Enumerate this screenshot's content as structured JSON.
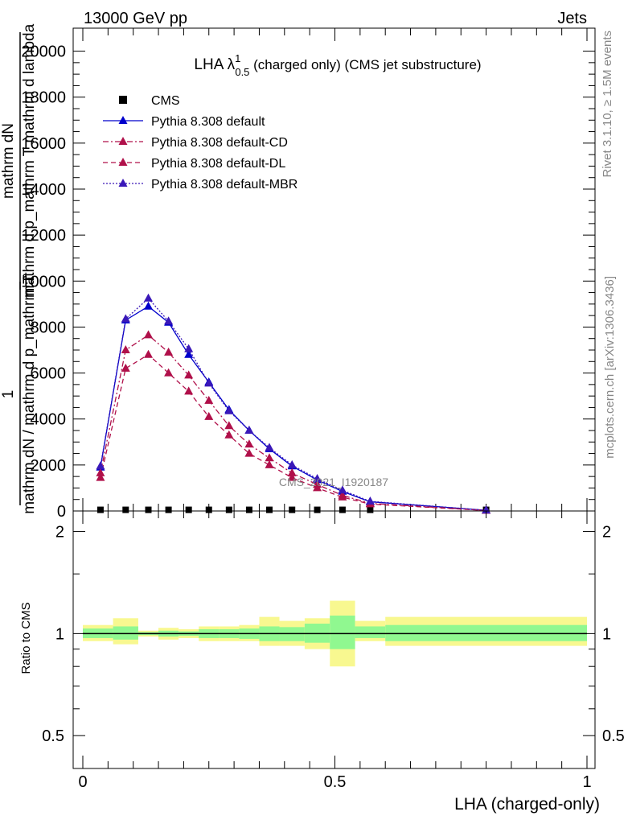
{
  "header": {
    "left": "13000 GeV pp",
    "right": "Jets"
  },
  "side_text": {
    "rivet": "Rivet 3.1.10, ≥ 1.5M events",
    "mcplots": "mcplots.cern.ch [arXiv:1306.3436]"
  },
  "chart_data": [
    {
      "type": "line",
      "title_main": "LHA λ",
      "title_sup": "1",
      "title_sub": "0.5",
      "title_rest": " (charged only) (CMS jet substructure)",
      "watermark": "CMS_2021_I1920187",
      "ylabel_line1": "mathrm dN",
      "ylabel_line2": "mathrm d p_mathrm T mathrm d lambda",
      "ylabel_line3": "1",
      "ylabel_line4": "mathrm dN / mathrm d p_mathrm T",
      "xlim": [
        0,
        1
      ],
      "ylim": [
        0,
        21000
      ],
      "y_ticks": [
        0,
        2000,
        4000,
        6000,
        8000,
        10000,
        12000,
        14000,
        16000,
        18000,
        20000
      ],
      "y_tick_labels": [
        "0",
        "2000",
        "4000",
        "6000",
        "8000",
        "10000",
        "12000",
        "14000",
        "16000",
        "18000",
        "20000"
      ],
      "x": [
        0.035,
        0.085,
        0.13,
        0.17,
        0.21,
        0.25,
        0.29,
        0.33,
        0.37,
        0.415,
        0.465,
        0.515,
        0.57,
        0.8
      ],
      "series": [
        {
          "name": "CMS",
          "color": "#000000",
          "marker": "square",
          "values": [
            50,
            50,
            50,
            50,
            50,
            50,
            50,
            50,
            50,
            50,
            50,
            50,
            50,
            50
          ]
        },
        {
          "name": "Pythia 8.308 default",
          "color": "#0000cc",
          "marker": "triangle",
          "dash": "solid",
          "values": [
            1900,
            8300,
            8900,
            8200,
            6800,
            5600,
            4400,
            3500,
            2700,
            1950,
            1350,
            850,
            400,
            30
          ]
        },
        {
          "name": "Pythia 8.308 default-CD",
          "color": "#b0104a",
          "marker": "triangle",
          "dash": "dashdot",
          "values": [
            1650,
            7000,
            7650,
            6900,
            5900,
            4800,
            3700,
            2900,
            2300,
            1650,
            1150,
            680,
            330,
            25
          ]
        },
        {
          "name": "Pythia 8.308 default-DL",
          "color": "#b0104a",
          "marker": "triangle",
          "dash": "dashed",
          "values": [
            1450,
            6200,
            6800,
            6000,
            5200,
            4100,
            3300,
            2500,
            2000,
            1450,
            1000,
            600,
            300,
            20
          ]
        },
        {
          "name": "Pythia 8.308 default-MBR",
          "color": "#3a18b8",
          "marker": "triangle",
          "dash": "dotted",
          "values": [
            1950,
            8350,
            9250,
            8250,
            7050,
            5550,
            4350,
            3500,
            2750,
            2000,
            1400,
            900,
            420,
            30
          ]
        }
      ]
    },
    {
      "type": "area",
      "ylabel": "Ratio to CMS",
      "xlabel": "LHA (charged-only)",
      "xlim": [
        0,
        1
      ],
      "ylim": [
        0.4,
        2.3
      ],
      "y_ticks": [
        0.5,
        1,
        2
      ],
      "y_tick_labels": [
        "0.5",
        "1",
        "2"
      ],
      "x_ticks": [
        0,
        0.5,
        1
      ],
      "x_tick_labels": [
        "0",
        "0.5",
        "1"
      ],
      "band_colors": {
        "inner": "#90f890",
        "outer": "#f8f890",
        "reference_line": "#000000"
      },
      "bins": [
        {
          "lo": 0.0,
          "hi": 0.06,
          "inner": [
            0.97,
            1.035
          ],
          "outer": [
            0.95,
            1.06
          ]
        },
        {
          "lo": 0.06,
          "hi": 0.11,
          "inner": [
            0.96,
            1.05
          ],
          "outer": [
            0.93,
            1.11
          ]
        },
        {
          "lo": 0.11,
          "hi": 0.15,
          "inner": [
            0.99,
            1.01
          ],
          "outer": [
            0.98,
            1.02
          ]
        },
        {
          "lo": 0.15,
          "hi": 0.19,
          "inner": [
            0.98,
            1.02
          ],
          "outer": [
            0.96,
            1.04
          ]
        },
        {
          "lo": 0.19,
          "hi": 0.23,
          "inner": [
            0.985,
            1.015
          ],
          "outer": [
            0.97,
            1.03
          ]
        },
        {
          "lo": 0.23,
          "hi": 0.27,
          "inner": [
            0.97,
            1.03
          ],
          "outer": [
            0.95,
            1.05
          ]
        },
        {
          "lo": 0.27,
          "hi": 0.31,
          "inner": [
            0.97,
            1.03
          ],
          "outer": [
            0.95,
            1.05
          ]
        },
        {
          "lo": 0.31,
          "hi": 0.35,
          "inner": [
            0.965,
            1.035
          ],
          "outer": [
            0.95,
            1.06
          ]
        },
        {
          "lo": 0.35,
          "hi": 0.39,
          "inner": [
            0.95,
            1.05
          ],
          "outer": [
            0.92,
            1.12
          ]
        },
        {
          "lo": 0.39,
          "hi": 0.44,
          "inner": [
            0.95,
            1.045
          ],
          "outer": [
            0.92,
            1.09
          ]
        },
        {
          "lo": 0.44,
          "hi": 0.49,
          "inner": [
            0.94,
            1.07
          ],
          "outer": [
            0.9,
            1.11
          ]
        },
        {
          "lo": 0.49,
          "hi": 0.54,
          "inner": [
            0.9,
            1.13
          ],
          "outer": [
            0.8,
            1.25
          ]
        },
        {
          "lo": 0.54,
          "hi": 0.6,
          "inner": [
            0.97,
            1.05
          ],
          "outer": [
            0.95,
            1.09
          ]
        },
        {
          "lo": 0.6,
          "hi": 1.0,
          "inner": [
            0.95,
            1.06
          ],
          "outer": [
            0.92,
            1.12
          ]
        }
      ]
    }
  ]
}
